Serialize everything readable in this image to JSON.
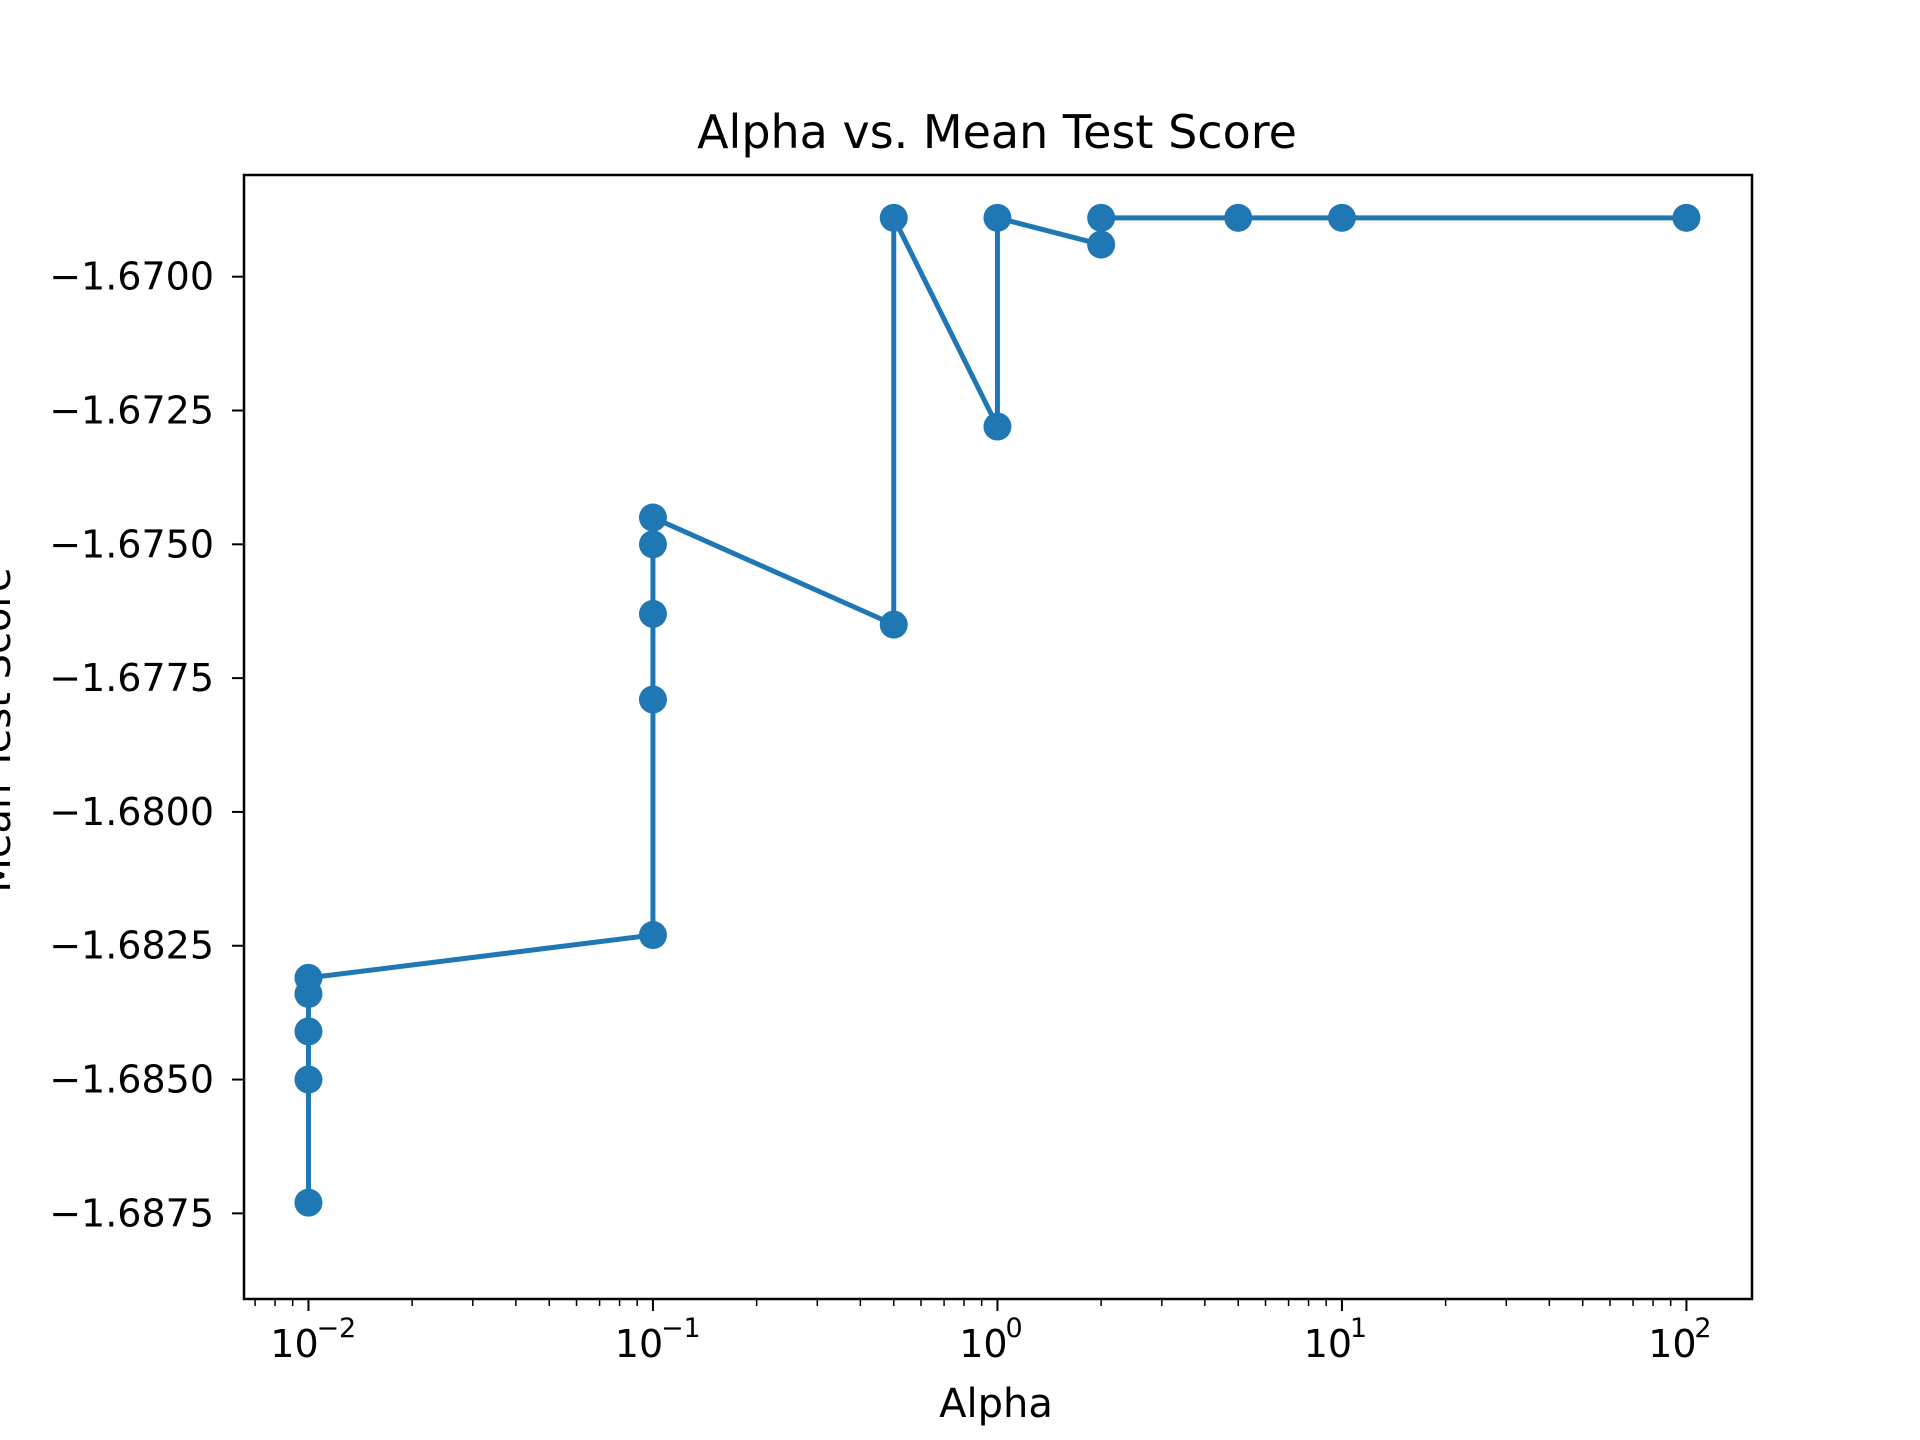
{
  "chart_data": {
    "type": "line",
    "title": "Alpha vs. Mean Test Score",
    "xlabel": "Alpha",
    "ylabel": "Mean Test Score",
    "xscale": "log",
    "xlim": [
      0.0065,
      155
    ],
    "ylim": [
      -1.6891,
      -1.6681
    ],
    "grid": false,
    "legend": "none",
    "x_ticks": [
      {
        "value": 0.01,
        "base": "10",
        "exp": "−2"
      },
      {
        "value": 0.1,
        "base": "10",
        "exp": "−1"
      },
      {
        "value": 1,
        "base": "10",
        "exp": "0"
      },
      {
        "value": 10,
        "base": "10",
        "exp": "1"
      },
      {
        "value": 100,
        "base": "10",
        "exp": "2"
      }
    ],
    "y_ticks": [
      {
        "value": -1.67,
        "label": "−1.6700"
      },
      {
        "value": -1.6725,
        "label": "−1.6725"
      },
      {
        "value": -1.675,
        "label": "−1.6750"
      },
      {
        "value": -1.6775,
        "label": "−1.6775"
      },
      {
        "value": -1.68,
        "label": "−1.6800"
      },
      {
        "value": -1.6825,
        "label": "−1.6825"
      },
      {
        "value": -1.685,
        "label": "−1.6850"
      },
      {
        "value": -1.6875,
        "label": "−1.6875"
      }
    ],
    "series": [
      {
        "color": "#1f77b4",
        "points": [
          {
            "x": 0.01,
            "y": -1.6873
          },
          {
            "x": 0.01,
            "y": -1.685
          },
          {
            "x": 0.01,
            "y": -1.6841
          },
          {
            "x": 0.01,
            "y": -1.6834
          },
          {
            "x": 0.01,
            "y": -1.6831
          },
          {
            "x": 0.1,
            "y": -1.6823
          },
          {
            "x": 0.1,
            "y": -1.6779
          },
          {
            "x": 0.1,
            "y": -1.6763
          },
          {
            "x": 0.1,
            "y": -1.675
          },
          {
            "x": 0.1,
            "y": -1.6745
          },
          {
            "x": 0.5,
            "y": -1.6765
          },
          {
            "x": 0.5,
            "y": -1.6689
          },
          {
            "x": 1,
            "y": -1.6728
          },
          {
            "x": 1,
            "y": -1.6689
          },
          {
            "x": 2,
            "y": -1.6694
          },
          {
            "x": 2,
            "y": -1.6689
          },
          {
            "x": 5,
            "y": -1.6689
          },
          {
            "x": 10,
            "y": -1.6689
          },
          {
            "x": 100,
            "y": -1.6689
          }
        ]
      }
    ]
  }
}
